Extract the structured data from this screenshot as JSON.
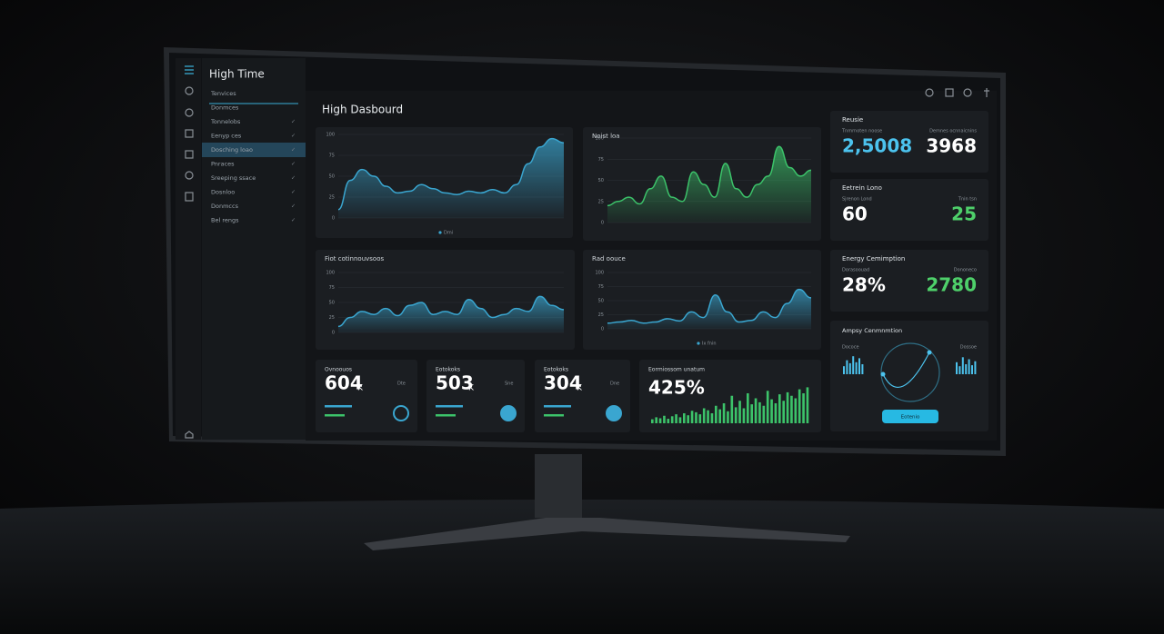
{
  "sidebar": {
    "title": "High Time",
    "items": [
      "Tenvices",
      "Donmces",
      "Tonnelobs",
      "Eenyp ces",
      "Dosching loao",
      "Pnraces",
      "Sreeping ssace",
      "Dosnloo",
      "Donmccs",
      "Bel rengs"
    ]
  },
  "header": {
    "title": "High Dasbourd"
  },
  "charts": [
    {
      "type": "area",
      "color": "#3aa6d0",
      "legend": "Dmi",
      "ylim": [
        0,
        100
      ],
      "yticks": [
        0,
        25,
        50,
        75,
        100
      ],
      "values": [
        10,
        45,
        58,
        50,
        38,
        30,
        32,
        40,
        35,
        30,
        28,
        32,
        30,
        34,
        30,
        40,
        65,
        85,
        95,
        90
      ]
    },
    {
      "type": "area",
      "title": "Noist loa",
      "color": "#3cc36a",
      "ylim": [
        0,
        100
      ],
      "yticks": [
        0,
        25,
        50,
        75,
        100
      ],
      "values": [
        20,
        25,
        30,
        22,
        40,
        55,
        30,
        25,
        60,
        45,
        30,
        70,
        40,
        30,
        45,
        55,
        90,
        65,
        55,
        62
      ]
    },
    {
      "type": "area",
      "title": "Fiot cotinnouvsoos",
      "color": "#3aa6d0",
      "ylim": [
        0,
        100
      ],
      "yticks": [
        0,
        25,
        50,
        75,
        100
      ],
      "values": [
        10,
        25,
        35,
        30,
        40,
        28,
        45,
        50,
        30,
        35,
        30,
        55,
        40,
        25,
        30,
        40,
        35,
        60,
        45,
        38
      ]
    },
    {
      "type": "area",
      "title": "Rad oouce",
      "color": "#3aa6d0",
      "legend": "Ix fnin",
      "ylim": [
        0,
        100
      ],
      "yticks": [
        0,
        25,
        50,
        75,
        100
      ],
      "values": [
        10,
        12,
        15,
        10,
        12,
        18,
        14,
        30,
        20,
        60,
        30,
        12,
        15,
        30,
        20,
        45,
        70,
        55
      ]
    }
  ],
  "kpis": [
    {
      "title": "Ovnoouos",
      "value": "604",
      "unit": "K",
      "note": "Dte"
    },
    {
      "title": "Eotokoks",
      "value": "503",
      "unit": "K",
      "note": "Sne"
    },
    {
      "title": "Eotokoks",
      "value": "304",
      "unit": "K",
      "note": "Dne"
    }
  ],
  "activity": {
    "title": "Eormiossom unatum",
    "value": "425%",
    "color": "#3cc36a",
    "values": [
      8,
      12,
      10,
      15,
      9,
      14,
      18,
      12,
      20,
      16,
      25,
      22,
      18,
      30,
      26,
      20,
      35,
      28,
      40,
      24,
      55,
      32,
      45,
      30,
      60,
      38,
      50,
      42,
      35,
      65,
      48,
      40,
      58,
      45,
      62,
      55,
      50,
      68,
      60,
      72
    ]
  },
  "stats": [
    {
      "title": "Reusie",
      "left": {
        "label": "Tnmrnoten noose",
        "value": "2,5008",
        "color": "#4cc3ee"
      },
      "right": {
        "label": "Demnes ocnnaicnins",
        "value": "3968",
        "color": "#ffffff"
      }
    },
    {
      "title": "Eetrein Lono",
      "left": {
        "label": "Sjrenon Lond",
        "value": "60",
        "color": "#ffffff"
      },
      "right": {
        "label": "Tnin tsn",
        "value": "25",
        "color": "#4ed06a"
      }
    },
    {
      "title": "Energy Cemimption",
      "left": {
        "label": "Dorasoouad",
        "value": "28%",
        "color": "#ffffff"
      },
      "right": {
        "label": "Dononeco",
        "value": "2780",
        "color": "#4ed06a"
      }
    }
  ],
  "gauge": {
    "title": "Ampsy Cenmnmtion",
    "left_label": "Dococe",
    "right_label": "Dossoe",
    "button": "Eotenio",
    "left_bars": [
      40,
      70,
      55,
      90,
      60,
      80,
      50
    ],
    "right_bars": [
      60,
      40,
      85,
      50,
      75,
      45,
      65
    ]
  }
}
